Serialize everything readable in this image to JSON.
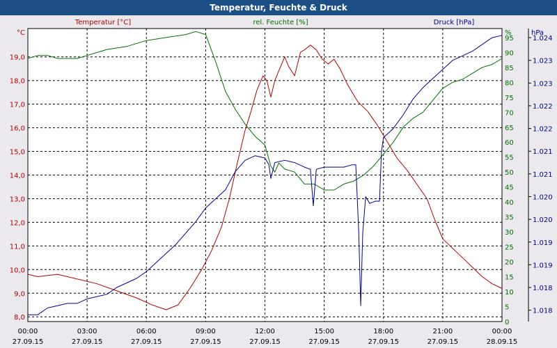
{
  "window": {
    "title": "Temperatur, Feuchte & Druck"
  },
  "chart_data": {
    "type": "line",
    "title": "Temperatur, Feuchte & Druck",
    "grid": true,
    "x": {
      "tick_times": [
        "00:00",
        "03:00",
        "06:00",
        "09:00",
        "12:00",
        "15:00",
        "18:00",
        "21:00",
        "00:00"
      ],
      "tick_dates": [
        "27.09.15",
        "27.09.15",
        "27.09.15",
        "27.09.15",
        "27.09.15",
        "27.09.15",
        "27.09.15",
        "27.09.15",
        "28.09.15"
      ],
      "range_hours": [
        0,
        24
      ]
    },
    "axes": {
      "temperature": {
        "unit": "°C",
        "ylim": [
          7.8,
          20.2
        ],
        "ticks": [
          "8,0",
          "9,0",
          "10,0",
          "11,0",
          "12,0",
          "13,0",
          "14,0",
          "15,0",
          "16,0",
          "17,0",
          "18,0",
          "19,0"
        ],
        "tick_values": [
          8,
          9,
          10,
          11,
          12,
          13,
          14,
          15,
          16,
          17,
          18,
          19
        ],
        "color": "#b00000"
      },
      "humidity": {
        "unit": "%",
        "ylim": [
          0,
          98
        ],
        "ticks": [
          "0",
          "5",
          "10",
          "15",
          "20",
          "25",
          "30",
          "35",
          "40",
          "45",
          "50",
          "55",
          "60",
          "65",
          "70",
          "75",
          "80",
          "85",
          "90",
          "95"
        ],
        "tick_values": [
          0,
          5,
          10,
          15,
          20,
          25,
          30,
          35,
          40,
          45,
          50,
          55,
          60,
          65,
          70,
          75,
          80,
          85,
          90,
          95
        ],
        "color": "#007000"
      },
      "pressure": {
        "unit": "hPa",
        "ylim": [
          1017.75,
          1024.2
        ],
        "ticks": [
          "1.018",
          "1.018",
          "1.019",
          "1.019",
          "1.020",
          "1.020",
          "1.021",
          "1.021",
          "1.022",
          "1.022",
          "1.023",
          "1.023",
          "1.024"
        ],
        "tick_values": [
          1018.0,
          1018.5,
          1019.0,
          1019.5,
          1020.0,
          1020.5,
          1021.0,
          1021.5,
          1022.0,
          1022.5,
          1023.0,
          1023.5,
          1024.0
        ],
        "color": "#00008c"
      }
    },
    "series": [
      {
        "name": "Temperatur [°C]",
        "axis": "temperature",
        "color": "#b00000",
        "points": [
          [
            0,
            9.8
          ],
          [
            0.5,
            9.7
          ],
          [
            1.5,
            9.8
          ],
          [
            2.5,
            9.6
          ],
          [
            3.5,
            9.4
          ],
          [
            4.5,
            9.1
          ],
          [
            5.5,
            8.8
          ],
          [
            6.3,
            8.5
          ],
          [
            7.0,
            8.3
          ],
          [
            7.6,
            8.5
          ],
          [
            8.2,
            9.2
          ],
          [
            8.8,
            10.0
          ],
          [
            9.3,
            10.8
          ],
          [
            9.8,
            11.8
          ],
          [
            10.2,
            13.0
          ],
          [
            10.6,
            14.5
          ],
          [
            11.0,
            15.9
          ],
          [
            11.3,
            16.7
          ],
          [
            11.6,
            17.6
          ],
          [
            11.9,
            18.2
          ],
          [
            12.1,
            18.0
          ],
          [
            12.3,
            17.3
          ],
          [
            12.5,
            18.0
          ],
          [
            12.8,
            18.6
          ],
          [
            13.0,
            19.0
          ],
          [
            13.2,
            18.6
          ],
          [
            13.5,
            18.2
          ],
          [
            13.8,
            19.2
          ],
          [
            14.0,
            19.3
          ],
          [
            14.3,
            19.5
          ],
          [
            14.6,
            19.3
          ],
          [
            14.9,
            18.9
          ],
          [
            15.2,
            18.7
          ],
          [
            15.5,
            18.9
          ],
          [
            15.8,
            18.5
          ],
          [
            16.2,
            17.8
          ],
          [
            16.7,
            17.1
          ],
          [
            17.2,
            16.7
          ],
          [
            17.7,
            16.1
          ],
          [
            18.2,
            15.4
          ],
          [
            18.7,
            14.7
          ],
          [
            19.2,
            14.2
          ],
          [
            19.7,
            13.6
          ],
          [
            20.2,
            13.0
          ],
          [
            20.6,
            12.1
          ],
          [
            21.0,
            11.3
          ],
          [
            21.5,
            10.9
          ],
          [
            22.0,
            10.5
          ],
          [
            22.5,
            10.1
          ],
          [
            23.0,
            9.7
          ],
          [
            23.5,
            9.4
          ],
          [
            24.0,
            9.2
          ]
        ]
      },
      {
        "name": "rel. Feuchte [%]",
        "axis": "humidity",
        "color": "#007000",
        "points": [
          [
            0,
            88
          ],
          [
            0.5,
            89
          ],
          [
            1.0,
            89
          ],
          [
            1.5,
            88
          ],
          [
            2.0,
            88
          ],
          [
            2.5,
            88
          ],
          [
            3.0,
            89
          ],
          [
            4.0,
            91
          ],
          [
            5.0,
            92
          ],
          [
            6.0,
            94
          ],
          [
            7.0,
            95
          ],
          [
            8.0,
            96
          ],
          [
            8.5,
            97
          ],
          [
            9.0,
            96
          ],
          [
            9.5,
            87
          ],
          [
            10.0,
            77
          ],
          [
            10.5,
            71
          ],
          [
            11.0,
            66
          ],
          [
            11.5,
            62
          ],
          [
            12.0,
            59
          ],
          [
            12.3,
            52
          ],
          [
            12.5,
            50
          ],
          [
            12.7,
            53
          ],
          [
            13.0,
            51
          ],
          [
            13.5,
            50
          ],
          [
            14.0,
            46
          ],
          [
            14.5,
            46
          ],
          [
            15.0,
            44
          ],
          [
            15.5,
            44
          ],
          [
            16.0,
            46
          ],
          [
            16.5,
            47
          ],
          [
            17.0,
            49
          ],
          [
            17.5,
            52
          ],
          [
            18.0,
            56
          ],
          [
            18.5,
            60
          ],
          [
            19.0,
            65
          ],
          [
            19.5,
            68
          ],
          [
            20.0,
            70
          ],
          [
            20.5,
            74
          ],
          [
            21.0,
            78
          ],
          [
            21.5,
            80
          ],
          [
            22.0,
            81
          ],
          [
            22.5,
            83
          ],
          [
            23.0,
            85
          ],
          [
            23.5,
            86
          ],
          [
            24.0,
            88
          ]
        ]
      },
      {
        "name": "Druck [hPa]",
        "axis": "pressure",
        "color": "#00008c",
        "points": [
          [
            0,
            1017.9
          ],
          [
            0.5,
            1017.9
          ],
          [
            1.0,
            1018.05
          ],
          [
            1.5,
            1018.1
          ],
          [
            2.0,
            1018.15
          ],
          [
            2.5,
            1018.15
          ],
          [
            3.0,
            1018.25
          ],
          [
            3.5,
            1018.3
          ],
          [
            4.0,
            1018.35
          ],
          [
            4.5,
            1018.5
          ],
          [
            5.0,
            1018.6
          ],
          [
            5.5,
            1018.7
          ],
          [
            6.0,
            1018.85
          ],
          [
            6.5,
            1019.05
          ],
          [
            7.0,
            1019.25
          ],
          [
            7.5,
            1019.45
          ],
          [
            8.0,
            1019.7
          ],
          [
            8.5,
            1019.95
          ],
          [
            9.0,
            1020.25
          ],
          [
            9.5,
            1020.45
          ],
          [
            10.0,
            1020.65
          ],
          [
            10.5,
            1021.05
          ],
          [
            11.0,
            1021.3
          ],
          [
            11.5,
            1021.4
          ],
          [
            12.0,
            1021.35
          ],
          [
            12.2,
            1021.2
          ],
          [
            12.3,
            1020.9
          ],
          [
            12.5,
            1021.25
          ],
          [
            13.0,
            1021.3
          ],
          [
            13.5,
            1021.25
          ],
          [
            14.0,
            1021.15
          ],
          [
            14.3,
            1021.1
          ],
          [
            14.45,
            1020.3
          ],
          [
            14.6,
            1021.1
          ],
          [
            15.0,
            1021.15
          ],
          [
            15.5,
            1021.15
          ],
          [
            16.0,
            1021.15
          ],
          [
            16.4,
            1021.2
          ],
          [
            16.6,
            1021.2
          ],
          [
            16.75,
            1019.7
          ],
          [
            16.85,
            1018.1
          ],
          [
            16.95,
            1019.7
          ],
          [
            17.1,
            1020.5
          ],
          [
            17.3,
            1020.35
          ],
          [
            17.6,
            1020.4
          ],
          [
            17.8,
            1020.4
          ],
          [
            17.9,
            1021.5
          ],
          [
            18.0,
            1021.8
          ],
          [
            18.5,
            1022.0
          ],
          [
            19.0,
            1022.3
          ],
          [
            19.5,
            1022.65
          ],
          [
            20.0,
            1022.9
          ],
          [
            20.5,
            1023.1
          ],
          [
            21.0,
            1023.3
          ],
          [
            21.5,
            1023.5
          ],
          [
            22.0,
            1023.6
          ],
          [
            22.5,
            1023.7
          ],
          [
            23.0,
            1023.85
          ],
          [
            23.5,
            1024.0
          ],
          [
            24.0,
            1024.05
          ]
        ]
      }
    ]
  }
}
